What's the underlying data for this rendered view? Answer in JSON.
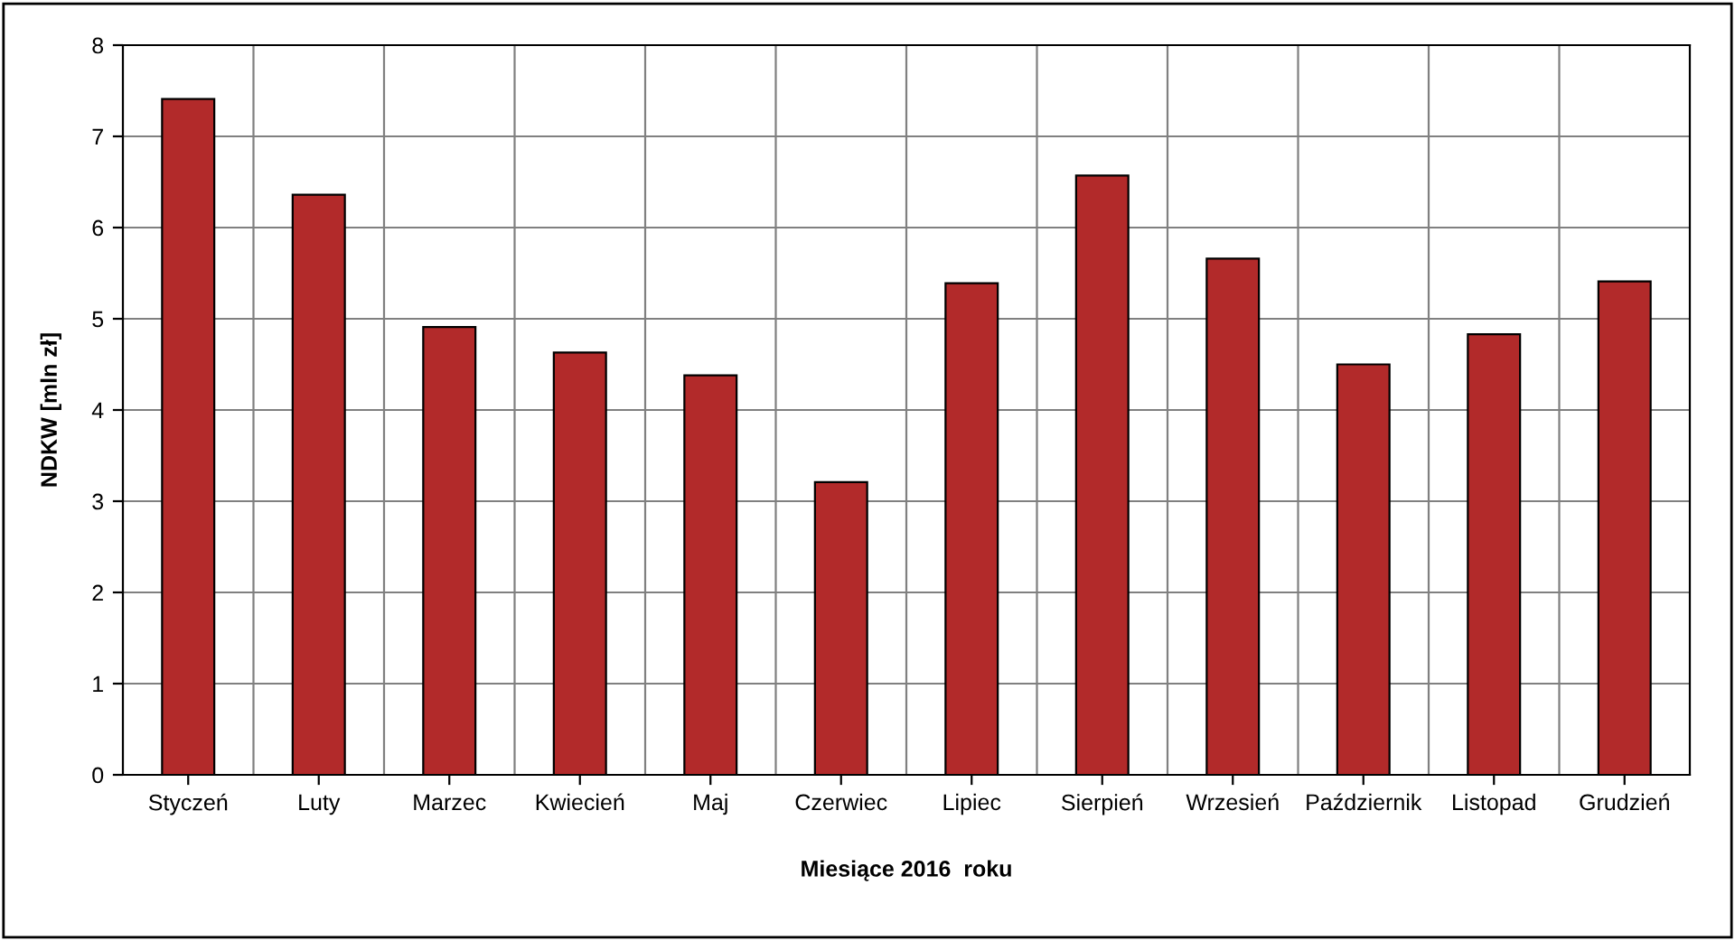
{
  "chart_data": {
    "type": "bar",
    "xlabel": "Miesiące 2016  roku",
    "ylabel": "NDKW [mln zł]",
    "categories": [
      "Styczeń",
      "Luty",
      "Marzec",
      "Kwiecień",
      "Maj",
      "Czerwiec",
      "Lipiec",
      "Sierpień",
      "Wrzesień",
      "Październik",
      "Listopad",
      "Grudzień"
    ],
    "values": [
      7.41,
      6.36,
      4.91,
      4.63,
      4.38,
      3.21,
      5.39,
      6.57,
      5.66,
      4.5,
      4.83,
      5.41
    ],
    "color": "#b22a2a",
    "ylim": [
      0,
      8
    ],
    "yticks": [
      0,
      1,
      2,
      3,
      4,
      5,
      6,
      7,
      8
    ],
    "grid": true,
    "legend": false
  }
}
